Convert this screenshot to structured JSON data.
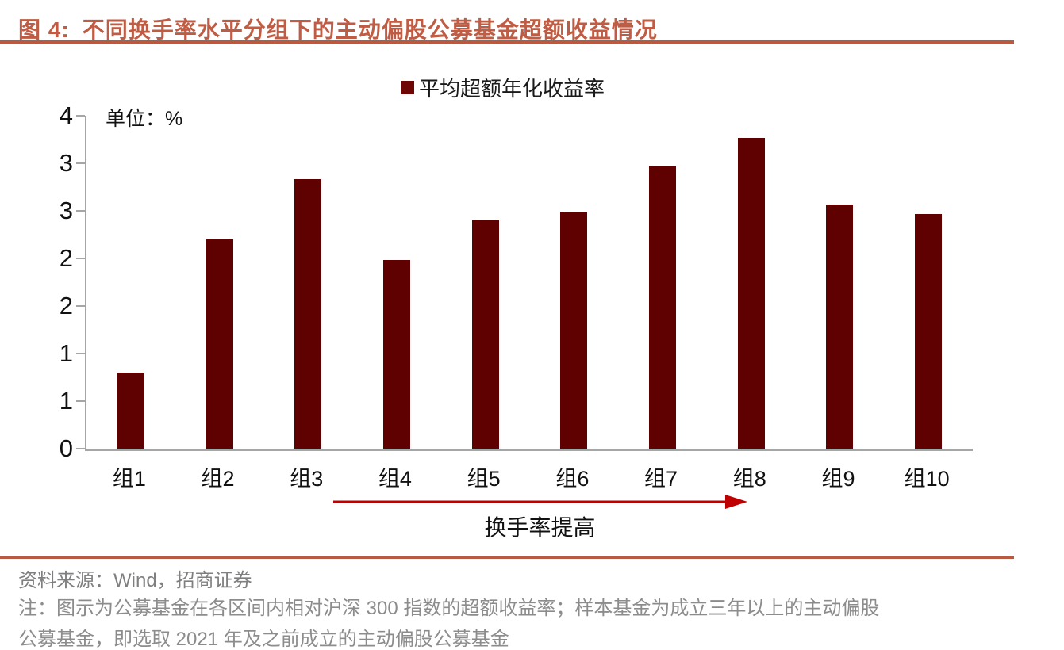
{
  "header": {
    "title_prefix": "图 4:",
    "title": "不同换手率水平分组下的主动偏股公募基金超额收益情况"
  },
  "chart_data": {
    "type": "bar",
    "title": "平均超额年化收益率",
    "unit_label": "单位：%",
    "categories": [
      "组1",
      "组2",
      "组3",
      "组4",
      "组5",
      "组6",
      "组7",
      "组8",
      "组9",
      "组10"
    ],
    "values": [
      0.8,
      2.21,
      2.83,
      1.98,
      2.4,
      2.48,
      2.97,
      3.27,
      2.57,
      2.47
    ],
    "ylabel": "",
    "xlabel": "",
    "ylim": [
      0,
      3.5
    ],
    "ytick_interval": 0.5,
    "ytick_labels_top_to_bottom": [
      "4",
      "3",
      "3",
      "2",
      "2",
      "1",
      "1",
      "0"
    ],
    "grid": false,
    "legend_position": "top-center",
    "legend_entries": [
      "平均超额年化收益率"
    ],
    "bar_color": "#5e0100",
    "annotation_arrow_label": "换手率提高",
    "annotation_arrow_direction": "right",
    "arrow_color": "#c00000"
  },
  "footer": {
    "source": "资料来源：Wind，招商证券",
    "note_line1": "注：图示为公募基金在各区间内相对沪深 300 指数的超额收益率；样本基金为成立三年以上的主动偏股",
    "note_line2": "公募基金，即选取 2021 年及之前成立的主动偏股公募基金"
  },
  "colors": {
    "accent_rule": "#b95a40",
    "title_text": "#bf5c43",
    "axis_line": "#a6a6a6",
    "bar": "#5e0100",
    "legend_swatch": "#6e0606",
    "arrow": "#c00000",
    "note_text": "#8c8c8c"
  }
}
